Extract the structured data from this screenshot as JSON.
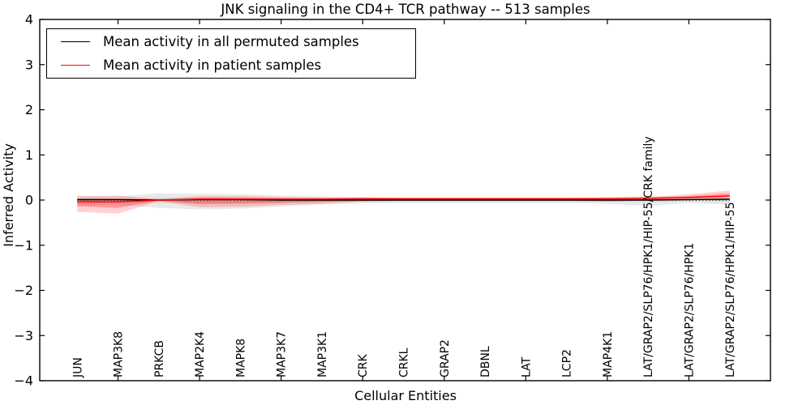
{
  "title": "JNK signaling in the CD4+ TCR pathway -- 513 samples",
  "legend": {
    "items": [
      {
        "label": "Mean activity in all permuted samples",
        "color": "#000000"
      },
      {
        "label": "Mean activity in patient samples",
        "color": "#ff0000"
      }
    ]
  },
  "chart_data": {
    "type": "line",
    "title": "JNK signaling in the CD4+ TCR pathway -- 513 samples",
    "xlabel": "Cellular Entities",
    "ylabel": "Inferred Activity",
    "ylim": [
      -4,
      4
    ],
    "yticks": [
      -4,
      -3,
      -2,
      -1,
      0,
      1,
      2,
      3,
      4
    ],
    "grid": false,
    "legend_position": "upper left",
    "zero_line": 0,
    "zero_line_style": "dotted",
    "x_tick_mark_indices": [
      1,
      3,
      5,
      7,
      9,
      11,
      13,
      15
    ],
    "categories": [
      "JUN",
      "MAP3K8",
      "PRKCB",
      "MAP2K4",
      "MAPK8",
      "MAP3K7",
      "MAP3K1",
      "CRK",
      "CRKL",
      "GRAP2",
      "DBNL",
      "LAT",
      "LCP2",
      "MAP4K1",
      "LAT/GRAP2/SLP76/HPK1/HIP-55/CRK family",
      "LAT/GRAP2/SLP76/HPK1",
      "LAT/GRAP2/SLP76/HPK1/HIP-55"
    ],
    "series": [
      {
        "name": "Mean activity in all permuted samples",
        "color": "#000000",
        "band_color": "#aaaaaa",
        "band_outer_opacity": 0.25,
        "band_inner_opacity": 0.22,
        "values": [
          0.01,
          0.01,
          0.0,
          0.01,
          0.01,
          0.0,
          0.0,
          0.0,
          0.0,
          0.0,
          0.0,
          0.0,
          0.0,
          0.0,
          0.0,
          0.01,
          0.02
        ],
        "band_outer_upper": [
          0.1,
          0.08,
          0.15,
          0.14,
          0.13,
          0.1,
          0.08,
          0.06,
          0.05,
          0.05,
          0.05,
          0.05,
          0.05,
          0.06,
          0.09,
          0.05,
          0.05
        ],
        "band_outer_lower": [
          -0.12,
          -0.1,
          -0.17,
          -0.21,
          -0.19,
          -0.14,
          -0.1,
          -0.07,
          -0.06,
          -0.06,
          -0.06,
          -0.06,
          -0.06,
          -0.08,
          -0.13,
          -0.07,
          -0.1
        ],
        "band_inner_upper": [
          0.04,
          0.03,
          0.06,
          0.05,
          0.05,
          0.04,
          0.03,
          0.02,
          0.02,
          0.02,
          0.02,
          0.02,
          0.02,
          0.02,
          0.03,
          0.02,
          0.02
        ],
        "band_inner_lower": [
          -0.05,
          -0.04,
          -0.07,
          -0.07,
          -0.06,
          -0.05,
          -0.04,
          -0.03,
          -0.02,
          -0.02,
          -0.02,
          -0.02,
          -0.02,
          -0.03,
          -0.04,
          -0.03,
          -0.04
        ]
      },
      {
        "name": "Mean activity in patient samples",
        "color": "#ff0000",
        "band_color": "#ff0000",
        "band_outer_opacity": 0.18,
        "band_inner_opacity": 0.28,
        "values": [
          -0.04,
          -0.04,
          0.0,
          0.02,
          0.02,
          0.02,
          0.02,
          0.03,
          0.03,
          0.03,
          0.03,
          0.03,
          0.03,
          0.03,
          0.04,
          0.06,
          0.09
        ],
        "band_outer_upper": [
          0.08,
          0.1,
          0.02,
          0.09,
          0.09,
          0.07,
          0.06,
          0.06,
          0.05,
          0.05,
          0.05,
          0.05,
          0.05,
          0.06,
          0.07,
          0.13,
          0.21
        ],
        "band_outer_lower": [
          -0.26,
          -0.3,
          -0.02,
          -0.16,
          -0.15,
          -0.11,
          -0.08,
          -0.04,
          -0.03,
          -0.03,
          -0.03,
          -0.03,
          -0.03,
          -0.04,
          -0.01,
          0.01,
          0.03
        ],
        "band_inner_upper": [
          0.02,
          0.03,
          0.01,
          0.05,
          0.05,
          0.04,
          0.04,
          0.04,
          0.04,
          0.04,
          0.04,
          0.04,
          0.04,
          0.04,
          0.05,
          0.09,
          0.15
        ],
        "band_inner_lower": [
          -0.14,
          -0.17,
          -0.01,
          -0.09,
          -0.08,
          -0.06,
          -0.04,
          -0.02,
          -0.01,
          -0.01,
          -0.01,
          -0.01,
          -0.01,
          -0.02,
          0.0,
          0.03,
          0.06
        ]
      }
    ]
  }
}
